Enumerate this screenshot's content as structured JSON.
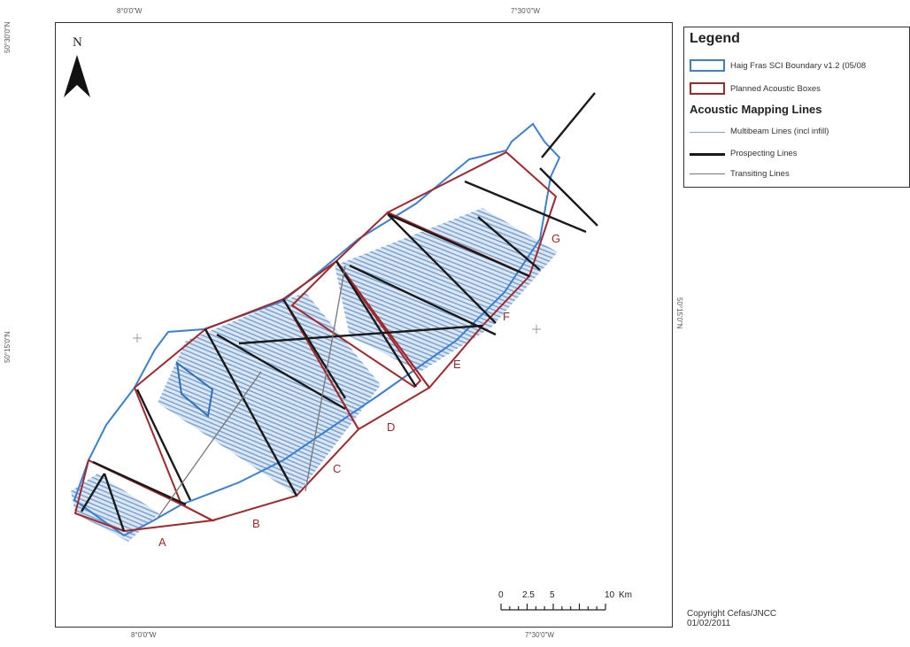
{
  "coords": {
    "top_left": "8°0'0\"W",
    "top_right": "7°30'0\"W",
    "bottom_left": "8°0'0\"W",
    "bottom_right": "7°30'0\"W",
    "left_top": "50°30'0\"N",
    "left_mid": "50°15'0\"N",
    "right_mid": "50°15'0\"N"
  },
  "north_label": "N",
  "legend": {
    "title": "Legend",
    "boundary": "Haig Fras SCI Boundary v1.2 (05/08",
    "boxes": "Planned Acoustic Boxes",
    "subtitle": "Acoustic Mapping Lines",
    "multibeam": "Multibeam Lines (incl infill)",
    "prospecting": "Prospecting Lines",
    "transiting": "Transiting Lines"
  },
  "box_labels": [
    "A",
    "B",
    "C",
    "D",
    "E",
    "F",
    "G"
  ],
  "scale": {
    "t0": "0",
    "t1": "2.5",
    "t2": "5",
    "t3": "10",
    "unit": "Km"
  },
  "copyright": {
    "line1": "Copyright Cefas/JNCC",
    "line2": "01/02/2011"
  },
  "colors": {
    "boundary": "#3a7fd5",
    "boxes": "#a2282c",
    "multibeam": "#7fa6d1",
    "prospecting": "#1a1a1a",
    "transiting": "#777777"
  }
}
